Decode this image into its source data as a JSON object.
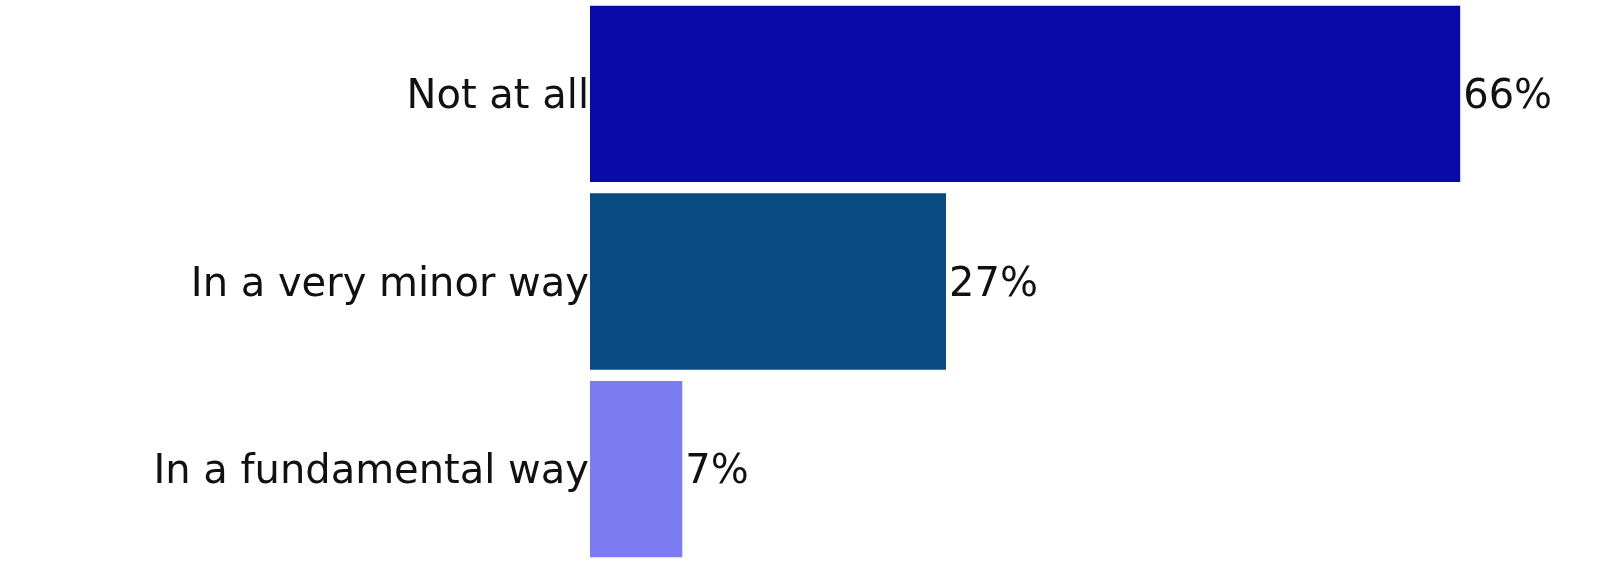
{
  "chart_data": {
    "type": "bar",
    "orientation": "horizontal",
    "categories": [
      "Not at all",
      "In a very minor way",
      "In a fundamental way"
    ],
    "values": [
      66,
      27,
      7
    ],
    "colors": [
      "#0a0aa8",
      "#0a4a82",
      "#7c7cf0"
    ],
    "value_labels": [
      "66%",
      "27%",
      "7%"
    ],
    "tick_labels": "y"
  }
}
